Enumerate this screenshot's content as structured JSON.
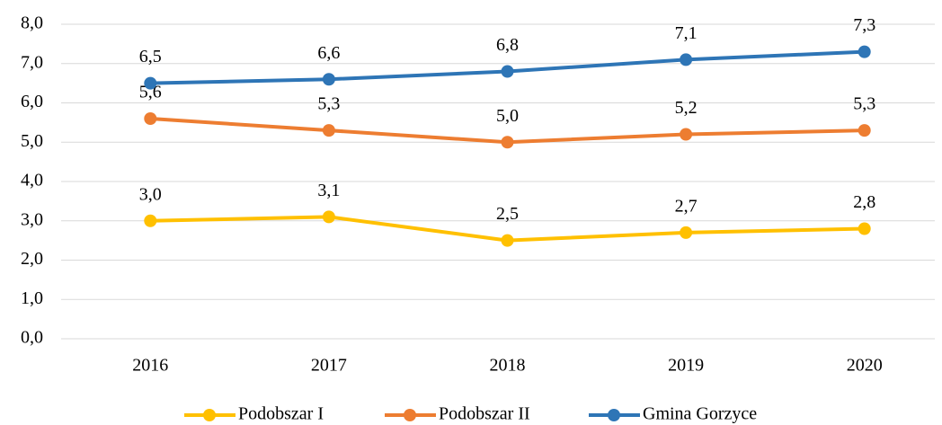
{
  "chart_data": {
    "type": "line",
    "categories": [
      "2016",
      "2017",
      "2018",
      "2019",
      "2020"
    ],
    "series": [
      {
        "name": "Podobszar I",
        "color": "#FFC000",
        "values": [
          3.0,
          3.1,
          2.5,
          2.7,
          2.8
        ],
        "value_labels": [
          "3,0",
          "3,1",
          "2,5",
          "2,7",
          "2,8"
        ]
      },
      {
        "name": "Podobszar II",
        "color": "#ED7D31",
        "values": [
          5.6,
          5.3,
          5.0,
          5.2,
          5.3
        ],
        "value_labels": [
          "5,6",
          "5,3",
          "5,0",
          "5,2",
          "5,3"
        ]
      },
      {
        "name": "Gmina Gorzyce",
        "color": "#2E75B6",
        "values": [
          6.5,
          6.6,
          6.8,
          7.1,
          7.3
        ],
        "value_labels": [
          "6,5",
          "6,6",
          "6,8",
          "7,1",
          "7,3"
        ]
      }
    ],
    "ylim": [
      0,
      8
    ],
    "yticks": [
      {
        "value": 0,
        "label": "0,0"
      },
      {
        "value": 1,
        "label": "1,0"
      },
      {
        "value": 2,
        "label": "2,0"
      },
      {
        "value": 3,
        "label": "3,0"
      },
      {
        "value": 4,
        "label": "4,0"
      },
      {
        "value": 5,
        "label": "5,0"
      },
      {
        "value": 6,
        "label": "6,0"
      },
      {
        "value": 7,
        "label": "7,0"
      },
      {
        "value": 8,
        "label": "8,0"
      }
    ],
    "grid": true,
    "legend": "bottom"
  }
}
